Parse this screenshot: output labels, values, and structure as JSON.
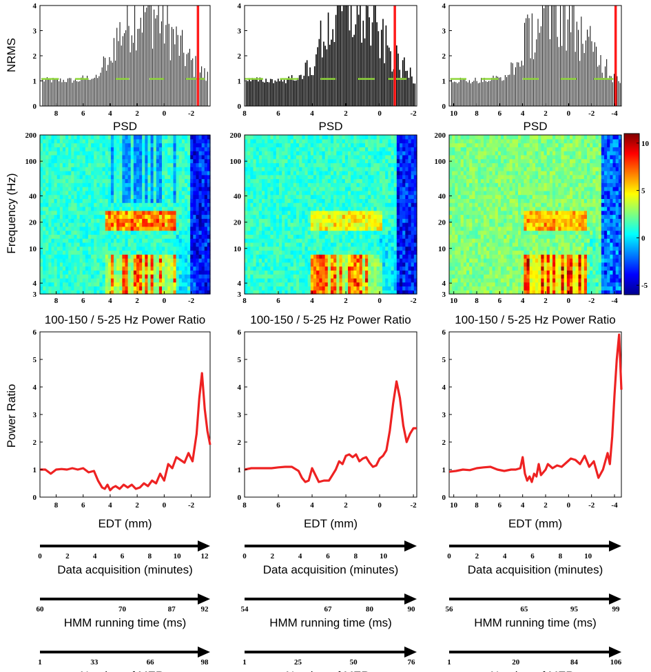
{
  "figure": {
    "ylabels": {
      "nrms": "NRMS",
      "frequency": "Frequency (Hz)",
      "power_ratio": "Power Ratio"
    },
    "colorbar": {
      "ticks": [
        "10",
        "5",
        "0",
        "-5"
      ],
      "values": [
        10,
        5,
        0,
        -5
      ],
      "range": [
        -6,
        11
      ],
      "colormap": "jet"
    },
    "colors": {
      "bars": "#000000",
      "target_line": "#ff1a1a",
      "threshold": "#8ed63a",
      "ratio_line": "#ee2222"
    },
    "panels": [
      {
        "nrms": {
          "type": "bar",
          "title": "",
          "xlabel": "PSD",
          "xlim": [
            9.2,
            -3.4
          ],
          "ylim": [
            0,
            4
          ],
          "xticks": [
            "8",
            "6",
            "4",
            "2",
            "0",
            "-2"
          ],
          "xtick_values": [
            8,
            6,
            4,
            2,
            0,
            -2
          ],
          "yticks": [
            "0",
            "1",
            "2",
            "3",
            "4"
          ],
          "ytick_values": [
            0,
            1,
            2,
            3,
            4
          ],
          "bar_range": [
            9.0,
            -3.3
          ],
          "bar_step": 0.11,
          "target_x": -2.5,
          "threshold_y": 1.08,
          "threshold_segments": [
            [
              9.1,
              7.8
            ],
            [
              6.6,
              5.6
            ],
            [
              3.6,
              2.6
            ],
            [
              1.1,
              0.0
            ],
            [
              -1.6,
              -3.0
            ]
          ]
        },
        "spectrogram": {
          "type": "heatmap",
          "xlim": [
            9.2,
            -3.4
          ],
          "yrange_hz": [
            3,
            200
          ],
          "xticks": [
            "8",
            "6",
            "4",
            "2",
            "0",
            "-2"
          ],
          "xtick_values": [
            8,
            6,
            4,
            2,
            0,
            -2
          ],
          "yticks": [
            "200",
            "100",
            "40",
            "20",
            "10",
            "4",
            "3"
          ],
          "ytick_values": [
            200,
            100,
            40,
            20,
            10,
            4,
            3
          ]
        },
        "ratio": {
          "type": "line",
          "title": "100-150 / 5-25 Hz Power Ratio",
          "xlabel": "EDT (mm)",
          "xlim": [
            9.2,
            -3.4
          ],
          "ylim": [
            0,
            6
          ],
          "xticks": [
            "8",
            "6",
            "4",
            "2",
            "0",
            "-2"
          ],
          "xtick_values": [
            8,
            6,
            4,
            2,
            0,
            -2
          ],
          "yticks": [
            "0",
            "1",
            "2",
            "3",
            "4",
            "5",
            "6"
          ],
          "ytick_values": [
            0,
            1,
            2,
            3,
            4,
            5,
            6
          ],
          "x": [
            9.2,
            8.8,
            8.4,
            8.0,
            7.6,
            7.2,
            6.8,
            6.4,
            6.0,
            5.6,
            5.2,
            4.9,
            4.6,
            4.4,
            4.2,
            4.0,
            3.8,
            3.6,
            3.3,
            3.0,
            2.7,
            2.4,
            2.1,
            1.8,
            1.5,
            1.2,
            0.9,
            0.6,
            0.3,
            0.0,
            -0.3,
            -0.6,
            -0.9,
            -1.2,
            -1.5,
            -1.8,
            -2.1,
            -2.4,
            -2.6,
            -2.8,
            -3.0,
            -3.2,
            -3.4
          ],
          "y": [
            1.0,
            1.0,
            0.85,
            1.0,
            1.02,
            1.0,
            1.05,
            1.0,
            1.05,
            0.9,
            0.95,
            0.6,
            0.35,
            0.3,
            0.45,
            0.25,
            0.35,
            0.4,
            0.3,
            0.45,
            0.35,
            0.45,
            0.3,
            0.35,
            0.5,
            0.4,
            0.6,
            0.5,
            0.85,
            0.6,
            1.2,
            1.05,
            1.45,
            1.35,
            1.25,
            1.6,
            1.3,
            2.3,
            3.6,
            4.5,
            3.2,
            2.4,
            1.9
          ]
        },
        "axes": [
          {
            "label": "Data acquisition  (minutes)",
            "ticks": [
              "0",
              "2",
              "4",
              "6",
              "8",
              "10",
              "12"
            ],
            "values": [
              0,
              2,
              4,
              6,
              8,
              10,
              12
            ],
            "range": [
              0,
              12
            ]
          },
          {
            "label": "HMM running time (ms)",
            "ticks": [
              "60",
              "70",
              "87",
              "92"
            ],
            "values": [
              0,
              0.5,
              0.8,
              1.0
            ],
            "range": [
              0,
              1
            ]
          },
          {
            "label": "Number of MERs",
            "ticks": [
              "1",
              "33",
              "66",
              "98"
            ],
            "values": [
              1,
              33,
              66,
              98
            ],
            "range": [
              1,
              98
            ]
          }
        ]
      },
      {
        "nrms": {
          "type": "bar",
          "title": "",
          "xlabel": "PSD",
          "xlim": [
            8.0,
            -2.2
          ],
          "ylim": [
            0,
            4
          ],
          "xticks": [
            "8",
            "6",
            "4",
            "2",
            "0",
            "-2"
          ],
          "xtick_values": [
            8,
            6,
            4,
            2,
            0,
            -2
          ],
          "yticks": [
            "0",
            "1",
            "2",
            "3",
            "4"
          ],
          "ytick_values": [
            0,
            1,
            2,
            3,
            4
          ],
          "bar_range": [
            7.9,
            -2.1
          ],
          "bar_step": 0.09,
          "target_x": -0.9,
          "threshold_y": 1.08,
          "threshold_segments": [
            [
              8.0,
              6.9
            ],
            [
              5.9,
              4.8
            ],
            [
              3.5,
              2.6
            ],
            [
              1.3,
              0.3
            ],
            [
              -0.5,
              -1.6
            ]
          ]
        },
        "spectrogram": {
          "type": "heatmap",
          "xlim": [
            8.0,
            -2.2
          ],
          "yrange_hz": [
            3,
            200
          ],
          "xticks": [
            "8",
            "6",
            "4",
            "2",
            "0",
            "-2"
          ],
          "xtick_values": [
            8,
            6,
            4,
            2,
            0,
            -2
          ],
          "yticks": [
            "200",
            "100",
            "40",
            "20",
            "10",
            "4",
            "3"
          ],
          "ytick_values": [
            200,
            100,
            40,
            20,
            10,
            4,
            3
          ]
        },
        "ratio": {
          "type": "line",
          "title": "100-150 / 5-25 Hz Power Ratio",
          "xlabel": "EDT (mm)",
          "xlim": [
            8.0,
            -2.2
          ],
          "ylim": [
            0,
            6
          ],
          "xticks": [
            "8",
            "6",
            "4",
            "2",
            "0",
            "-2"
          ],
          "xtick_values": [
            8,
            6,
            4,
            2,
            0,
            -2
          ],
          "yticks": [
            "0",
            "1",
            "2",
            "3",
            "4",
            "5",
            "6"
          ],
          "ytick_values": [
            0,
            1,
            2,
            3,
            4,
            5,
            6
          ],
          "x": [
            8.0,
            7.6,
            7.2,
            6.8,
            6.4,
            6.0,
            5.6,
            5.2,
            4.8,
            4.6,
            4.4,
            4.2,
            4.0,
            3.8,
            3.6,
            3.3,
            3.0,
            2.8,
            2.6,
            2.4,
            2.2,
            2.0,
            1.8,
            1.6,
            1.4,
            1.2,
            1.0,
            0.8,
            0.6,
            0.4,
            0.2,
            0.0,
            -0.2,
            -0.4,
            -0.6,
            -0.8,
            -1.0,
            -1.2,
            -1.4,
            -1.6,
            -1.8,
            -2.0,
            -2.2
          ],
          "y": [
            1.0,
            1.05,
            1.05,
            1.05,
            1.05,
            1.08,
            1.1,
            1.1,
            0.95,
            0.7,
            0.55,
            0.6,
            1.05,
            0.8,
            0.55,
            0.6,
            0.6,
            0.8,
            1.0,
            1.3,
            1.2,
            1.5,
            1.55,
            1.45,
            1.55,
            1.3,
            1.4,
            1.45,
            1.25,
            1.1,
            1.15,
            1.4,
            1.5,
            1.7,
            2.4,
            3.4,
            4.2,
            3.6,
            2.6,
            2.0,
            2.3,
            2.5,
            2.5
          ]
        },
        "axes": [
          {
            "label": "Data acquisition  (minutes)",
            "ticks": [
              "0",
              "2",
              "4",
              "6",
              "8",
              "10"
            ],
            "values": [
              0,
              2,
              4,
              6,
              8,
              10
            ],
            "range": [
              0,
              12
            ]
          },
          {
            "label": "HMM running time (ms)",
            "ticks": [
              "54",
              "67",
              "80",
              "90"
            ],
            "values": [
              0,
              0.5,
              0.75,
              1.0
            ],
            "range": [
              0,
              1
            ]
          },
          {
            "label": "Number of MERs",
            "ticks": [
              "1",
              "25",
              "50",
              "76"
            ],
            "values": [
              1,
              25,
              50,
              76
            ],
            "range": [
              1,
              76
            ]
          }
        ]
      },
      {
        "nrms": {
          "type": "bar",
          "title": "",
          "xlabel": "PSD",
          "xlim": [
            10.4,
            -4.6
          ],
          "ylim": [
            0,
            4
          ],
          "xticks": [
            "10",
            "8",
            "6",
            "4",
            "2",
            "0",
            "-2",
            "-4"
          ],
          "xtick_values": [
            10,
            8,
            6,
            4,
            2,
            0,
            -2,
            -4
          ],
          "yticks": [
            "0",
            "1",
            "2",
            "3",
            "4"
          ],
          "ytick_values": [
            0,
            1,
            2,
            3,
            4
          ],
          "bar_range": [
            10.2,
            -4.5
          ],
          "bar_step": 0.13,
          "target_x": -4.1,
          "threshold_y": 1.08,
          "threshold_segments": [
            [
              10.3,
              8.9
            ],
            [
              7.6,
              6.1
            ],
            [
              4.0,
              2.6
            ],
            [
              0.7,
              -0.7
            ],
            [
              -2.2,
              -3.9
            ]
          ]
        },
        "spectrogram": {
          "type": "heatmap",
          "xlim": [
            10.4,
            -4.6
          ],
          "yrange_hz": [
            3,
            200
          ],
          "xticks": [
            "10",
            "8",
            "6",
            "4",
            "2",
            "0",
            "-2",
            "-4"
          ],
          "xtick_values": [
            10,
            8,
            6,
            4,
            2,
            0,
            -2,
            -4
          ],
          "yticks": [
            "200",
            "100",
            "40",
            "20",
            "10",
            "4",
            "3"
          ],
          "ytick_values": [
            200,
            100,
            40,
            20,
            10,
            4,
            3
          ]
        },
        "ratio": {
          "type": "line",
          "title": "100-150 / 5-25 Hz Power Ratio",
          "xlabel": "EDT (mm)",
          "xlim": [
            10.4,
            -4.6
          ],
          "ylim": [
            0,
            6
          ],
          "xticks": [
            "10",
            "8",
            "6",
            "4",
            "2",
            "0",
            "-2",
            "-4"
          ],
          "xtick_values": [
            10,
            8,
            6,
            4,
            2,
            0,
            -2,
            -4
          ],
          "yticks": [
            "0",
            "1",
            "2",
            "3",
            "4",
            "5",
            "6"
          ],
          "ytick_values": [
            0,
            1,
            2,
            3,
            4,
            5,
            6
          ],
          "x": [
            10.4,
            9.8,
            9.2,
            8.6,
            8.0,
            7.4,
            6.8,
            6.2,
            5.6,
            5.0,
            4.6,
            4.2,
            4.0,
            3.8,
            3.6,
            3.4,
            3.2,
            3.0,
            2.8,
            2.6,
            2.4,
            2.2,
            2.0,
            1.8,
            1.4,
            1.0,
            0.6,
            0.2,
            -0.2,
            -0.6,
            -1.0,
            -1.4,
            -1.8,
            -2.2,
            -2.6,
            -3.0,
            -3.4,
            -3.6,
            -3.8,
            -4.0,
            -4.2,
            -4.4,
            -4.6
          ],
          "y": [
            0.92,
            0.95,
            1.0,
            0.98,
            1.05,
            1.08,
            1.1,
            1.0,
            0.95,
            1.0,
            1.0,
            1.05,
            1.45,
            0.85,
            0.6,
            0.75,
            0.55,
            0.85,
            0.75,
            1.2,
            0.8,
            0.9,
            1.0,
            1.2,
            1.05,
            1.15,
            1.1,
            1.25,
            1.4,
            1.35,
            1.2,
            1.5,
            1.1,
            1.3,
            0.7,
            1.0,
            1.6,
            1.2,
            2.2,
            3.7,
            5.0,
            5.9,
            3.9
          ]
        },
        "axes": [
          {
            "label": "Data acquisition  (minutes)",
            "ticks": [
              "0",
              "2",
              "4",
              "6",
              "8",
              "10"
            ],
            "values": [
              0,
              2,
              4,
              6,
              8,
              10
            ],
            "range": [
              0,
              12
            ]
          },
          {
            "label": "HMM running time (ms)",
            "ticks": [
              "56",
              "65",
              "95",
              "99"
            ],
            "values": [
              0,
              0.45,
              0.75,
              1.0
            ],
            "range": [
              0,
              1
            ]
          },
          {
            "label": "Number of MERs",
            "ticks": [
              "1",
              "20",
              "84",
              "106"
            ],
            "values": [
              0,
              0.4,
              0.75,
              1.0
            ],
            "range": [
              0,
              1
            ]
          }
        ]
      }
    ]
  }
}
